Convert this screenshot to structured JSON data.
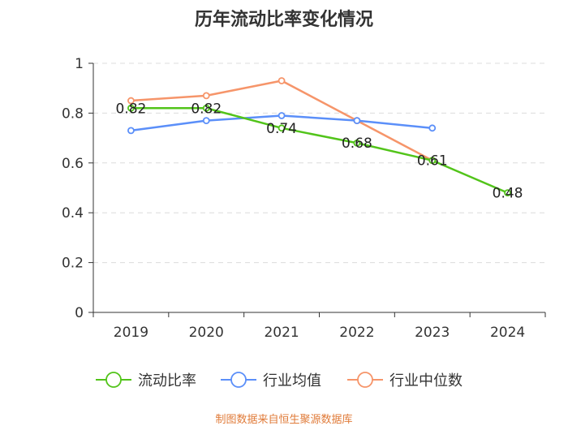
{
  "chart_data": {
    "type": "line",
    "title": "历年流动比率变化情况",
    "categories": [
      "2019",
      "2020",
      "2021",
      "2022",
      "2023",
      "2024"
    ],
    "ylim": [
      0,
      1
    ],
    "yticks": [
      "0",
      "0.2",
      "0.4",
      "0.6",
      "0.8",
      "1"
    ],
    "grid": true,
    "legend_position": "bottom",
    "series": [
      {
        "name": "流动比率",
        "color": "#52c41a",
        "values": [
          0.82,
          0.82,
          0.74,
          0.68,
          0.61,
          0.48
        ],
        "labels": [
          "0.82",
          "0.82",
          "0.74",
          "0.68",
          "0.61",
          "0.48"
        ]
      },
      {
        "name": "行业均值",
        "color": "#5b8ff9",
        "values": [
          0.73,
          0.77,
          0.79,
          0.77,
          0.74,
          null
        ]
      },
      {
        "name": "行业中位数",
        "color": "#f6956a",
        "values": [
          0.85,
          0.87,
          0.93,
          0.77,
          0.61,
          null
        ]
      }
    ]
  },
  "source": "制图数据来自恒生聚源数据库"
}
